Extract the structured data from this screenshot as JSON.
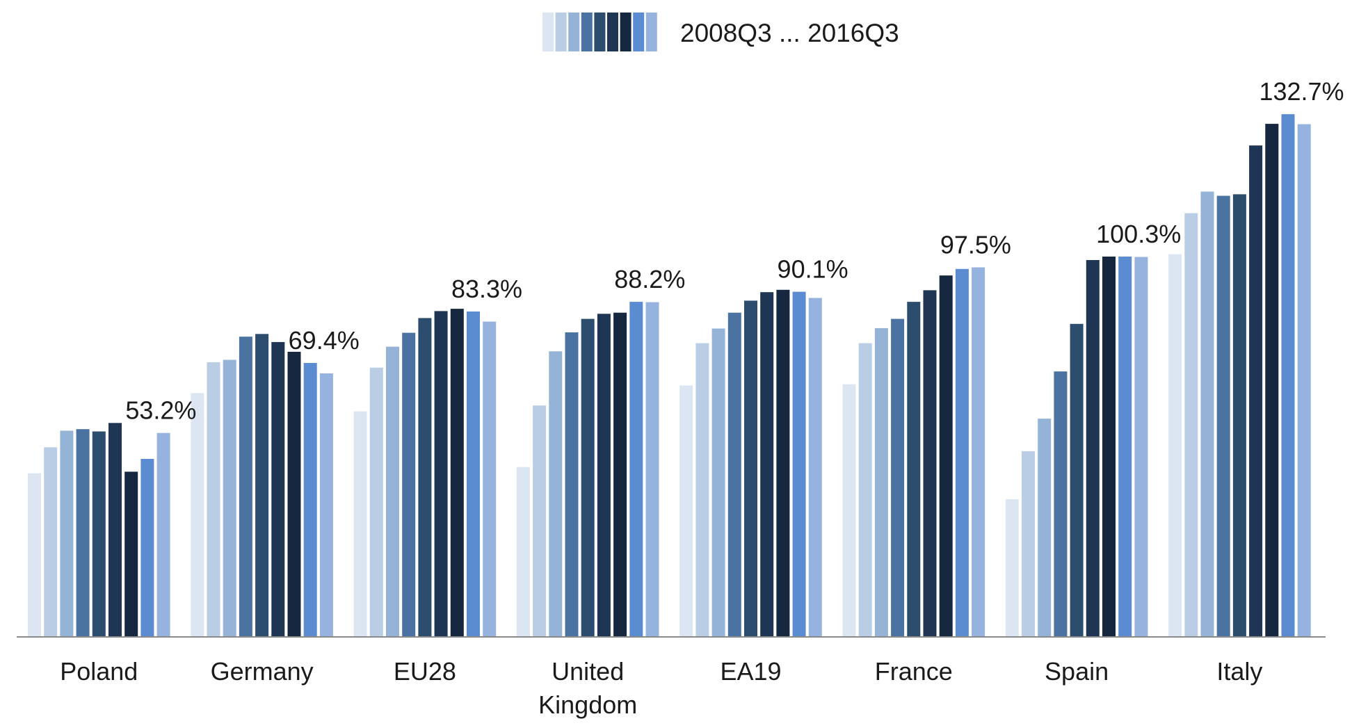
{
  "legend": {
    "label": "2008Q3 ... 2016Q3",
    "swatch_colors": [
      "#dce6f2",
      "#b9cde4",
      "#95b3d7",
      "#4a73a1",
      "#2c4d6d",
      "#1e3553",
      "#162840",
      "#5b8bd0",
      "#95b3de"
    ]
  },
  "chart_data": {
    "type": "bar",
    "title": "",
    "xlabel": "",
    "ylabel": "",
    "ylim": [
      0,
      140
    ],
    "grid": false,
    "legend_position": "top-center",
    "legend_label": "2008Q3 ... 2016Q3",
    "categories": [
      "Poland",
      "Germany",
      "EU28",
      "United Kingdom",
      "EA19",
      "France",
      "Spain",
      "Italy"
    ],
    "category_labels": [
      [
        "Poland"
      ],
      [
        "Germany"
      ],
      [
        "EU28"
      ],
      [
        "United",
        "Kingdom"
      ],
      [
        "EA19"
      ],
      [
        "France"
      ],
      [
        "Spain"
      ],
      [
        "Italy"
      ]
    ],
    "series_colors": [
      "#dce6f2",
      "#b9cde4",
      "#95b3d7",
      "#4a73a1",
      "#2c4d6d",
      "#1e3553",
      "#162840",
      "#5b8bd0",
      "#95b3de"
    ],
    "values": [
      [
        42.3,
        49.0,
        53.3,
        53.7,
        53.1,
        55.3,
        42.7,
        46.0,
        52.7
      ],
      [
        63.0,
        71.0,
        71.6,
        77.6,
        78.3,
        76.2,
        73.7,
        70.8,
        68.1
      ],
      [
        58.3,
        69.6,
        75.0,
        78.6,
        82.4,
        84.2,
        84.8,
        84.1,
        81.5
      ],
      [
        43.9,
        59.8,
        73.8,
        78.7,
        82.2,
        83.5,
        83.8,
        86.6,
        86.5
      ],
      [
        65.0,
        75.9,
        79.7,
        83.8,
        86.9,
        89.1,
        89.7,
        89.2,
        87.6
      ],
      [
        65.3,
        75.9,
        79.8,
        82.2,
        86.6,
        89.6,
        93.4,
        95.1,
        95.5
      ],
      [
        35.6,
        48.0,
        56.4,
        68.6,
        80.9,
        97.4,
        98.3,
        98.3,
        98.2
      ],
      [
        98.9,
        109.5,
        115.1,
        114.0,
        114.4,
        127.0,
        132.6,
        135.1,
        132.5
      ]
    ],
    "value_labels": [
      "53.2%",
      "69.4%",
      "83.3%",
      "88.2%",
      "90.1%",
      "97.5%",
      "100.3%",
      "132.7%"
    ]
  }
}
